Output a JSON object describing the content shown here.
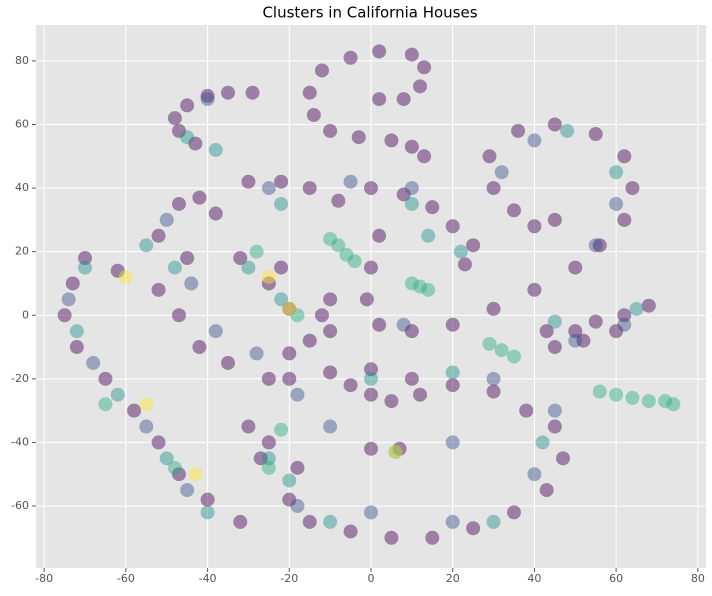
{
  "chart_data": {
    "type": "scatter",
    "title": "Clusters in California Houses",
    "xlim": [
      -82,
      82
    ],
    "ylim": [
      -79.5,
      91.3
    ],
    "xticks": [
      -80,
      -60,
      -40,
      -20,
      0,
      20,
      40,
      60,
      80
    ],
    "yticks": [
      -60,
      -40,
      -20,
      0,
      20,
      40,
      60,
      80
    ],
    "grid": true,
    "opacity": 0.45,
    "groups": [
      {
        "color": "#440154",
        "x": [
          -29,
          -35,
          -40,
          -45,
          -48,
          -47,
          -43,
          2,
          8,
          12,
          13,
          10,
          2,
          -5,
          -12,
          -15,
          -14,
          -10,
          -3,
          5,
          10,
          13,
          2,
          0,
          -1,
          2,
          10,
          20,
          30,
          40,
          50,
          56,
          62,
          64,
          62,
          55,
          45,
          36,
          29,
          30,
          35,
          40,
          45,
          -30,
          -22,
          -15,
          -8,
          0,
          8,
          15,
          20,
          25,
          23,
          43,
          50,
          55,
          62,
          68,
          45,
          52,
          60,
          -20,
          -10,
          0,
          10,
          20,
          30,
          38,
          45,
          47,
          43,
          35,
          25,
          15,
          5,
          -5,
          -15,
          -20,
          -18,
          -25,
          -30,
          -27,
          -5,
          0,
          5,
          12,
          0,
          7,
          -70,
          -73,
          -75,
          -72,
          -65,
          -58,
          -52,
          -47,
          -40,
          -32,
          -62,
          -52,
          -47,
          -42,
          -38,
          -45,
          -52,
          -47,
          -42,
          -35,
          -25,
          -20,
          -15,
          -12,
          -10,
          -32,
          -25,
          -20,
          -22,
          -10
        ],
        "y": [
          70,
          70,
          69,
          66,
          62,
          58,
          54,
          68,
          68,
          72,
          78,
          82,
          83,
          81,
          77,
          70,
          63,
          58,
          56,
          55,
          53,
          50,
          25,
          15,
          5,
          -3,
          -5,
          -3,
          2,
          8,
          15,
          22,
          30,
          40,
          50,
          57,
          60,
          58,
          50,
          40,
          33,
          28,
          30,
          42,
          42,
          40,
          36,
          40,
          38,
          34,
          28,
          22,
          16,
          -5,
          -5,
          -2,
          0,
          3,
          -10,
          -8,
          -5,
          -20,
          -18,
          -17,
          -20,
          -22,
          -24,
          -30,
          -35,
          -45,
          -55,
          -62,
          -67,
          -70,
          -70,
          -68,
          -65,
          -58,
          -48,
          -40,
          -35,
          -45,
          -22,
          -25,
          -27,
          -25,
          -42,
          -42,
          18,
          10,
          0,
          -10,
          -20,
          -30,
          -40,
          -50,
          -58,
          -65,
          14,
          25,
          35,
          37,
          32,
          18,
          8,
          0,
          -10,
          -15,
          -20,
          -12,
          -8,
          0,
          5,
          18,
          10,
          2,
          15,
          -5
        ]
      },
      {
        "color": "#3b528b",
        "x": [
          -74,
          -68,
          -55,
          -45,
          -50,
          -44,
          -38,
          -28,
          -25,
          -5,
          10,
          -18,
          0,
          20,
          40,
          45,
          30,
          50,
          62,
          55,
          60,
          40,
          32,
          8,
          -18,
          -40,
          -10,
          20
        ],
        "y": [
          5,
          -15,
          -35,
          -55,
          30,
          10,
          -5,
          -12,
          40,
          42,
          40,
          -60,
          -62,
          -65,
          -50,
          -30,
          -20,
          -8,
          -3,
          22,
          35,
          55,
          45,
          -3,
          -25,
          68,
          -35,
          -40
        ]
      },
      {
        "color": "#21918c",
        "x": [
          -70,
          -72,
          -62,
          -50,
          -40,
          -55,
          -48,
          -30,
          -22,
          -22,
          10,
          14,
          22,
          45,
          65,
          60,
          48,
          -25,
          -20,
          -10,
          30,
          42,
          0,
          20,
          -45,
          -38,
          6
        ],
        "y": [
          15,
          -5,
          -25,
          -45,
          -62,
          22,
          15,
          15,
          5,
          35,
          35,
          25,
          20,
          -2,
          2,
          45,
          58,
          -45,
          -52,
          -65,
          -65,
          -40,
          -20,
          -18,
          56,
          52,
          -43
        ]
      },
      {
        "color": "#27ad81",
        "x": [
          -10,
          -8,
          -6,
          -4,
          10,
          12,
          14,
          29,
          32,
          35,
          56,
          60,
          64,
          68,
          72,
          74,
          -65,
          -48,
          -25,
          -22,
          -18,
          -28
        ],
        "y": [
          24,
          22,
          19,
          17,
          10,
          9,
          8,
          -9,
          -11,
          -13,
          -24,
          -25,
          -26,
          -27,
          -27,
          -28,
          -28,
          -48,
          -48,
          -36,
          0,
          20
        ]
      },
      {
        "color": "#fde725",
        "x": [
          -43,
          -60,
          -25,
          6,
          -55,
          -20
        ],
        "y": [
          -50,
          12,
          12,
          -43,
          -28,
          2
        ]
      }
    ]
  }
}
